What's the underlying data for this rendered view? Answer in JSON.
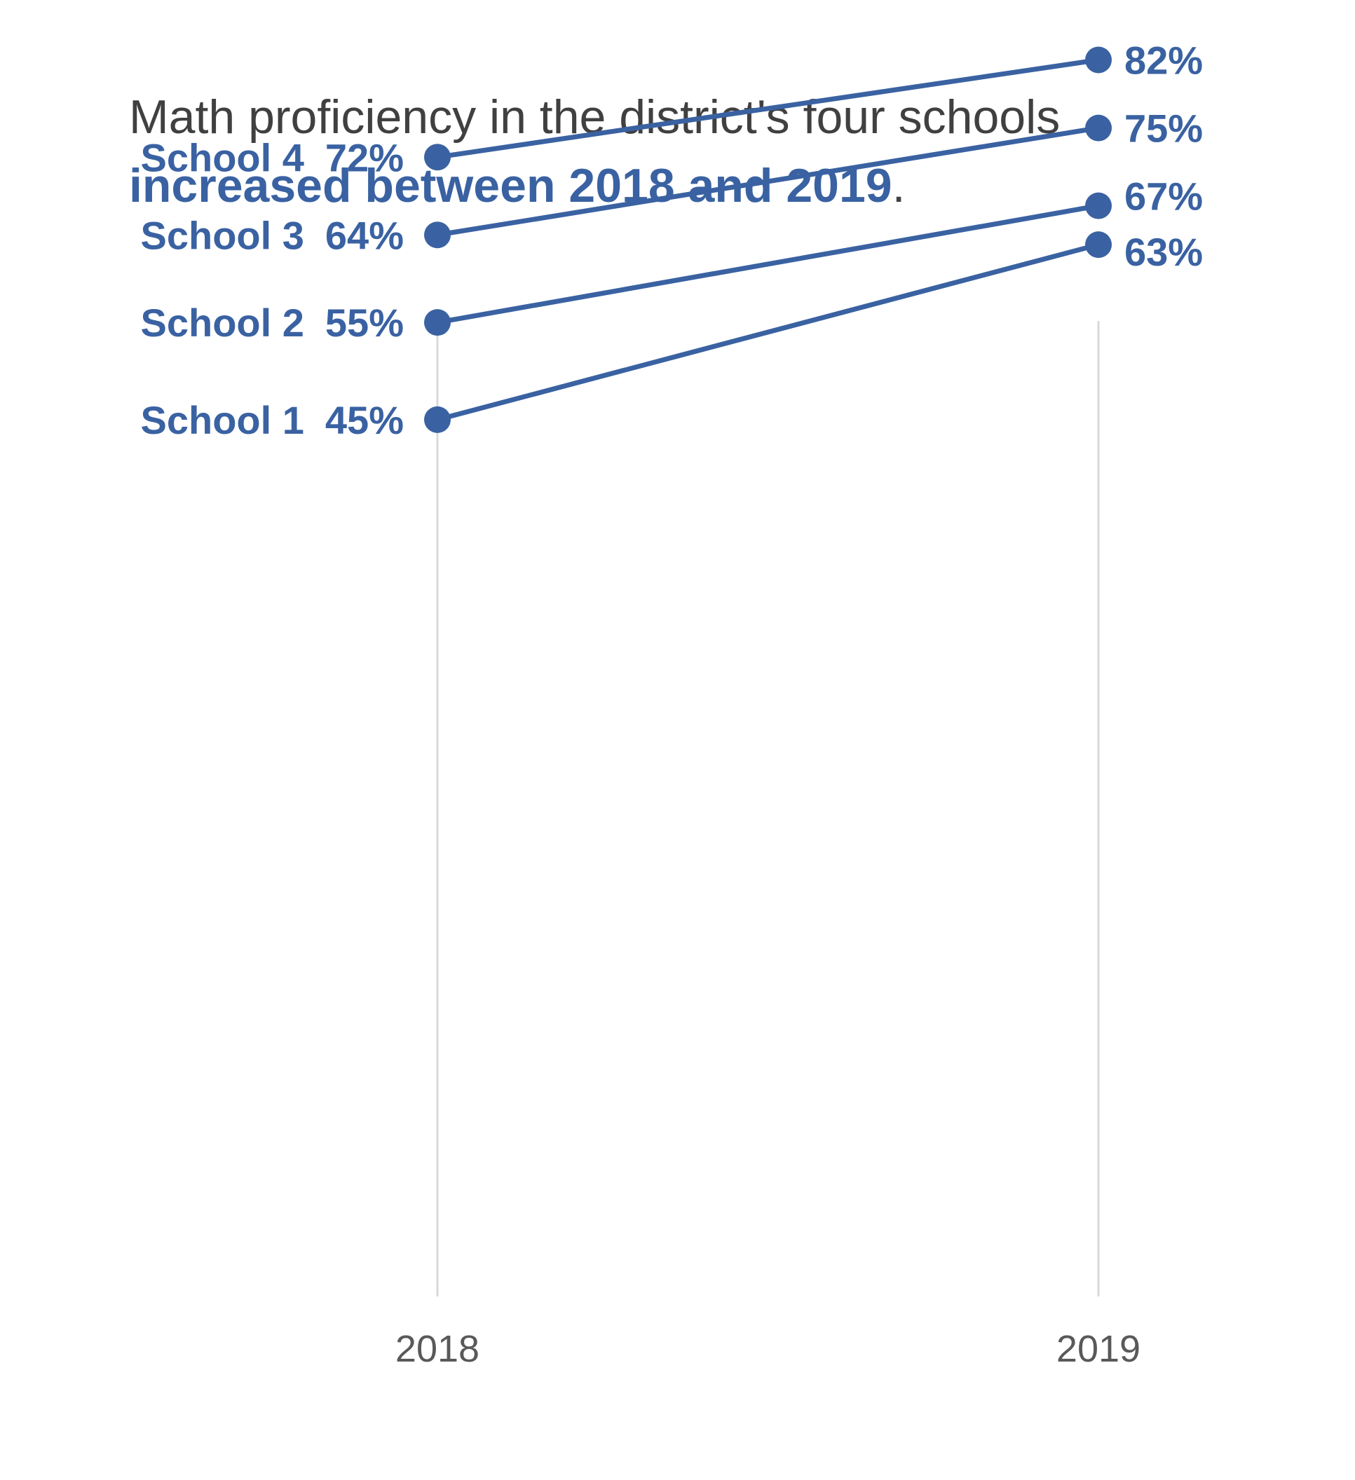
{
  "title": {
    "line1": "Math proficiency in the district's four schools",
    "line2_emphasis": "increased between 2018 and 2019",
    "line2_suffix": "."
  },
  "colors": {
    "series": "#3a62a2",
    "axis": "#d9d9d9",
    "title": "#404040",
    "tick": "#595959"
  },
  "chart_data": {
    "type": "line",
    "subtype": "slope",
    "title": "Math proficiency in the district's four schools increased between 2018 and 2019.",
    "categories": [
      "2018",
      "2019"
    ],
    "ylim": [
      0,
      100
    ],
    "grid": false,
    "legend": "none",
    "series": [
      {
        "name": "School 4",
        "values": [
          72,
          82
        ],
        "start_label": "72%",
        "end_label": "82%"
      },
      {
        "name": "School 3",
        "values": [
          64,
          75
        ],
        "start_label": "64%",
        "end_label": "75%"
      },
      {
        "name": "School 2",
        "values": [
          55,
          67
        ],
        "start_label": "55%",
        "end_label": "67%"
      },
      {
        "name": "School 1",
        "values": [
          45,
          63
        ],
        "start_label": "45%",
        "end_label": "63%"
      }
    ]
  }
}
